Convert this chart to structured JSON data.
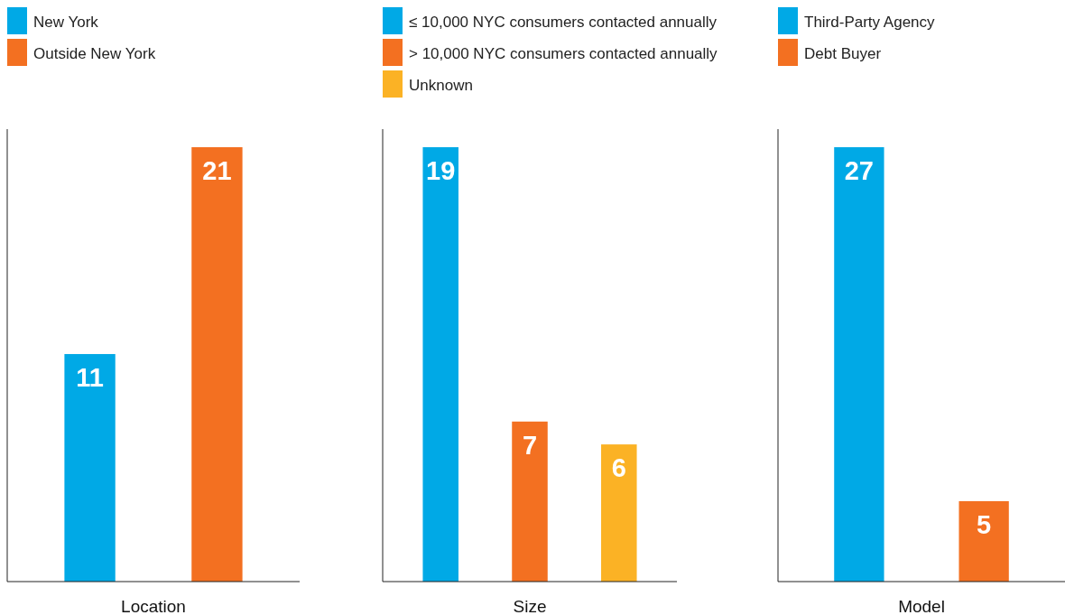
{
  "chart_data": [
    {
      "type": "bar",
      "xlabel": "Location",
      "categories": [
        null,
        null
      ],
      "stacked": true,
      "data_labels": true,
      "legend": "top",
      "series": [
        {
          "name": "New York",
          "color": "#00a9e6",
          "values": [
            11,
            null
          ]
        },
        {
          "name": "Outside New York",
          "color": "#f37021",
          "values": [
            null,
            21
          ]
        }
      ]
    },
    {
      "type": "bar",
      "xlabel": "Size",
      "categories": [
        null,
        null,
        null
      ],
      "stacked": true,
      "data_labels": true,
      "legend": "top",
      "series": [
        {
          "name": "≤ 10,000 NYC consumers contacted annually",
          "color": "#00a9e6",
          "values": [
            19,
            null,
            null
          ]
        },
        {
          "name": "> 10,000 NYC consumers contacted annually",
          "color": "#f37021",
          "values": [
            null,
            7,
            null
          ]
        },
        {
          "name": "Unknown",
          "color": "#fbb225",
          "values": [
            null,
            null,
            6
          ]
        }
      ]
    },
    {
      "type": "bar",
      "xlabel": "Model",
      "categories": [
        null,
        null
      ],
      "stacked": true,
      "data_labels": true,
      "legend": "top",
      "series": [
        {
          "name": "Third-Party Agency",
          "color": "#00a9e6",
          "values": [
            27,
            null
          ]
        },
        {
          "name": "Debt Buyer",
          "color": "#f37021",
          "values": [
            null,
            5
          ]
        }
      ]
    }
  ]
}
